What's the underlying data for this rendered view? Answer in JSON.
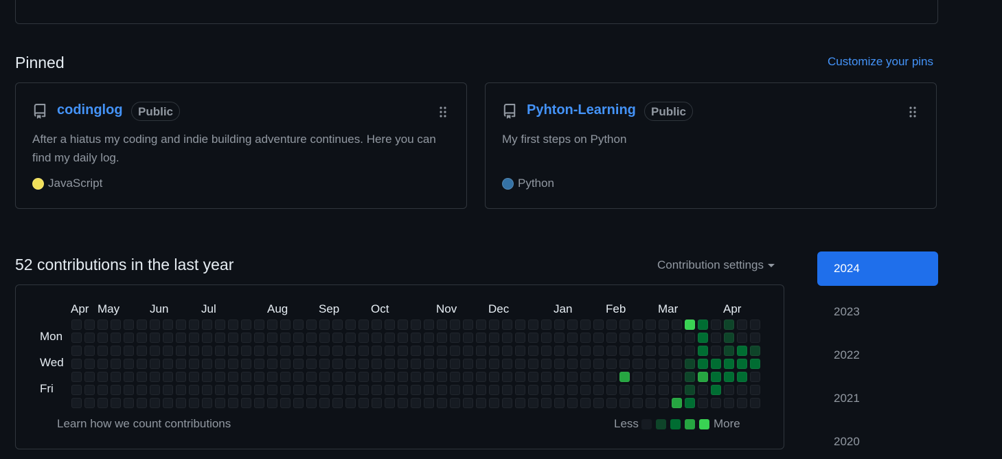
{
  "pinned": {
    "title": "Pinned",
    "customize_label": "Customize your pins",
    "repos": [
      {
        "name": "codinglog",
        "visibility": "Public",
        "description": "After a hiatus my coding and indie building adventure continues. Here you can find my daily log.",
        "language": "JavaScript",
        "language_color": "#f1e05a",
        "icon": "repo-icon"
      },
      {
        "name": "Pyhton-Learning",
        "visibility": "Public",
        "description": "My first steps on Python",
        "language": "Python",
        "language_color": "#3572A5",
        "icon": "repo-icon"
      }
    ]
  },
  "contributions": {
    "title": "52 contributions in the last year",
    "settings_label": "Contribution settings",
    "months": [
      "Apr",
      "May",
      "Jun",
      "Jul",
      "Aug",
      "Sep",
      "Oct",
      "Nov",
      "Dec",
      "Jan",
      "Feb",
      "Mar",
      "Apr"
    ],
    "days": [
      "Mon",
      "Wed",
      "Fri"
    ],
    "learn_label": "Learn how we count contributions",
    "legend_less": "Less",
    "legend_more": "More",
    "level_colors": [
      "#161b22",
      "#0e4429",
      "#006d32",
      "#26a641",
      "#39d353"
    ],
    "weeks": 53,
    "active_cells": [
      {
        "week": 42,
        "day": 4,
        "level": 3
      },
      {
        "week": 46,
        "day": 6,
        "level": 3
      },
      {
        "week": 47,
        "day": 0,
        "level": 4
      },
      {
        "week": 47,
        "day": 3,
        "level": 1
      },
      {
        "week": 47,
        "day": 4,
        "level": 1
      },
      {
        "week": 47,
        "day": 5,
        "level": 1
      },
      {
        "week": 47,
        "day": 6,
        "level": 2
      },
      {
        "week": 48,
        "day": 0,
        "level": 2
      },
      {
        "week": 48,
        "day": 1,
        "level": 2
      },
      {
        "week": 48,
        "day": 2,
        "level": 2
      },
      {
        "week": 48,
        "day": 3,
        "level": 2
      },
      {
        "week": 48,
        "day": 4,
        "level": 3
      },
      {
        "week": 49,
        "day": 3,
        "level": 2
      },
      {
        "week": 49,
        "day": 4,
        "level": 2
      },
      {
        "week": 49,
        "day": 5,
        "level": 2
      },
      {
        "week": 50,
        "day": 0,
        "level": 1
      },
      {
        "week": 50,
        "day": 1,
        "level": 1
      },
      {
        "week": 50,
        "day": 2,
        "level": 1
      },
      {
        "week": 50,
        "day": 3,
        "level": 2
      },
      {
        "week": 50,
        "day": 4,
        "level": 2
      },
      {
        "week": 51,
        "day": 2,
        "level": 2
      },
      {
        "week": 51,
        "day": 3,
        "level": 2
      },
      {
        "week": 51,
        "day": 4,
        "level": 2
      },
      {
        "week": 52,
        "day": 2,
        "level": 1
      },
      {
        "week": 52,
        "day": 3,
        "level": 2
      }
    ]
  },
  "years": [
    "2024",
    "2023",
    "2022",
    "2021",
    "2020"
  ],
  "active_year": "2024"
}
